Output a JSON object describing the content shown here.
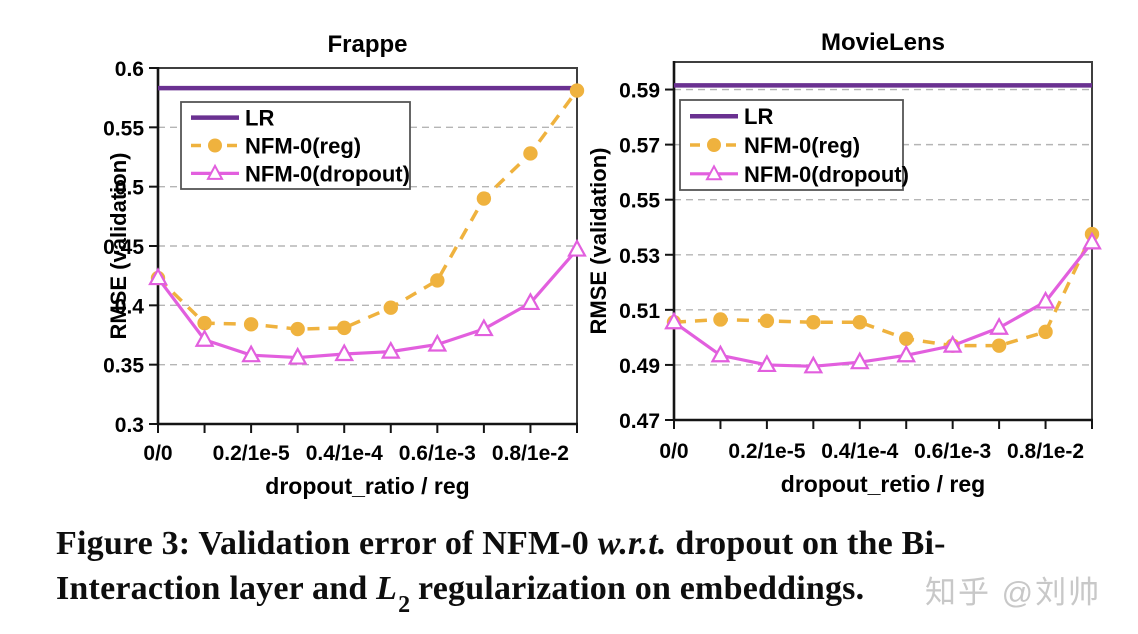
{
  "caption": {
    "line1_pre": "Figure 3: Validation error of NFM-0 ",
    "line1_italic": "w.r.t.",
    "line1_post": " dropout on the Bi-",
    "line2_pre": "Interaction layer and ",
    "line2_var": "L",
    "line2_sub": "2",
    "line2_post": " regularization on embeddings."
  },
  "watermark": {
    "text": "知乎 @刘帅",
    "color": "#c8c8c8"
  },
  "colors": {
    "lr": "#6A3191",
    "reg": "#EFB23E",
    "dropout": "#E25FDE",
    "grid": "#b5b5b5",
    "axis": "#141414",
    "border": "#3f3f3f",
    "legend_border": "#555555",
    "text": "#000000",
    "background": "#ffffff"
  },
  "chart_data": [
    {
      "type": "line",
      "title": "Frappe",
      "xlabel": "dropout_ratio / reg",
      "ylabel": "RMSE (validation)",
      "ylim": [
        0.3,
        0.6
      ],
      "grid": "dashed-horizontal",
      "legend_position": "top-left",
      "x_points": 10,
      "x_tick_labels": [
        {
          "index": 0,
          "label": "0/0"
        },
        {
          "index": 2,
          "label": "0.2/1e-5"
        },
        {
          "index": 4,
          "label": "0.4/1e-4"
        },
        {
          "index": 6,
          "label": "0.6/1e-3"
        },
        {
          "index": 8,
          "label": "0.8/1e-2"
        }
      ],
      "y_ticks": [
        {
          "v": 0.6,
          "label": "0.6",
          "grid": false
        },
        {
          "v": 0.55,
          "label": "0.55",
          "grid": true
        },
        {
          "v": 0.5,
          "label": "0.5",
          "grid": true
        },
        {
          "v": 0.45,
          "label": "0.45",
          "grid": true
        },
        {
          "v": 0.4,
          "label": "0.4",
          "grid": true
        },
        {
          "v": 0.35,
          "label": "0.35",
          "grid": true
        },
        {
          "v": 0.3,
          "label": "0.3",
          "grid": false
        }
      ],
      "series": [
        {
          "name": "LR",
          "style": "hline",
          "color": "#6A3191",
          "value": 0.583
        },
        {
          "name": "NFM-0(reg)",
          "style": "dashed_circle",
          "color": "#EFB23E",
          "values": [
            0.423,
            0.385,
            0.384,
            0.38,
            0.381,
            0.398,
            0.421,
            0.49,
            0.528,
            0.581
          ]
        },
        {
          "name": "NFM-0(dropout)",
          "style": "solid_triangle",
          "color": "#E25FDE",
          "values": [
            0.423,
            0.371,
            0.358,
            0.356,
            0.359,
            0.361,
            0.367,
            0.38,
            0.402,
            0.447
          ]
        }
      ]
    },
    {
      "type": "line",
      "title": "MovieLens",
      "xlabel": "dropout_retio / reg",
      "ylabel": "RMSE (validation)",
      "ylim": [
        0.47,
        0.6
      ],
      "grid": "dashed-horizontal",
      "legend_position": "top-left",
      "x_points": 10,
      "x_tick_labels": [
        {
          "index": 0,
          "label": "0/0"
        },
        {
          "index": 2,
          "label": "0.2/1e-5"
        },
        {
          "index": 4,
          "label": "0.4/1e-4"
        },
        {
          "index": 6,
          "label": "0.6/1e-3"
        },
        {
          "index": 8,
          "label": "0.8/1e-2"
        }
      ],
      "y_ticks": [
        {
          "v": 0.59,
          "label": "0.59",
          "grid": true
        },
        {
          "v": 0.57,
          "label": "0.57",
          "grid": true
        },
        {
          "v": 0.55,
          "label": "0.55",
          "grid": true
        },
        {
          "v": 0.53,
          "label": "0.53",
          "grid": true
        },
        {
          "v": 0.51,
          "label": "0.51",
          "grid": true
        },
        {
          "v": 0.49,
          "label": "0.49",
          "grid": true
        },
        {
          "v": 0.47,
          "label": "0.47",
          "grid": false
        }
      ],
      "series": [
        {
          "name": "LR",
          "style": "hline",
          "color": "#6A3191",
          "value": 0.5915
        },
        {
          "name": "NFM-0(reg)",
          "style": "dashed_circle",
          "color": "#EFB23E",
          "values": [
            0.5055,
            0.5065,
            0.506,
            0.5055,
            0.5055,
            0.4995,
            0.497,
            0.497,
            0.502,
            0.5375
          ]
        },
        {
          "name": "NFM-0(dropout)",
          "style": "solid_triangle",
          "color": "#E25FDE",
          "values": [
            0.5055,
            0.4935,
            0.49,
            0.4895,
            0.491,
            0.4935,
            0.497,
            0.5035,
            0.513,
            0.5345
          ]
        }
      ]
    }
  ]
}
